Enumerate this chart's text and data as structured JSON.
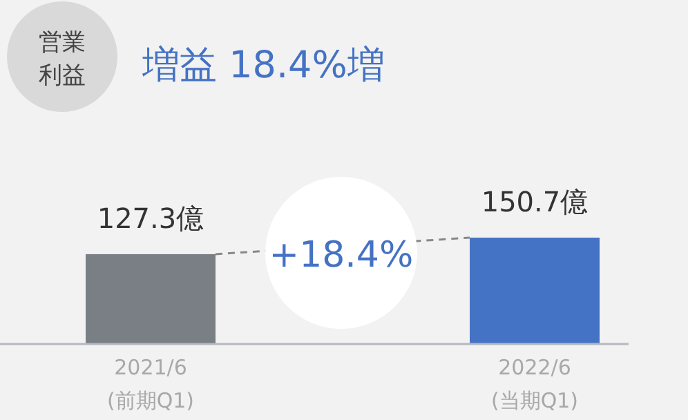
{
  "chart_data": {
    "type": "bar",
    "title": "増益 18.4%増",
    "subtitle": "営業利益",
    "categories": [
      "2021/6\n(前期Q1)",
      "2022/6\n(当期Q1)"
    ],
    "values": [
      127.3,
      150.7
    ],
    "colors": [
      "#7a7e85",
      "#4472c4"
    ],
    "value_labels": [
      "127.3億",
      "150.7億"
    ],
    "annotations": [
      "+18.4%"
    ]
  }
}
